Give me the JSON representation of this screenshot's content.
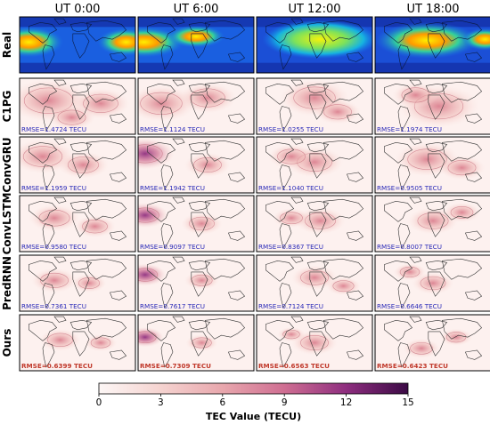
{
  "chart_data": {
    "type": "heatmap",
    "columns": [
      "UT 0:00",
      "UT 6:00",
      "UT 12:00",
      "UT 18:00"
    ],
    "rows": [
      "Real",
      "C1PG",
      "ConvGRU",
      "ConvLSTM",
      "PredRNN",
      "Ours"
    ],
    "rmse": {
      "C1PG": [
        "RMSE=1.4724 TECU",
        "RMSE=1.1124 TECU",
        "RMSE=1.0255 TECU",
        "RMSE=1.1974 TECU"
      ],
      "ConvGRU": [
        "RMSE=1.1959 TECU",
        "RMSE=1.1942 TECU",
        "RMSE=1.1040 TECU",
        "RMSE=0.9505 TECU"
      ],
      "ConvLSTM": [
        "RMSE=0.9580 TECU",
        "RMSE=0.9097 TECU",
        "RMSE=0.8367 TECU",
        "RMSE=0.8007 TECU"
      ],
      "PredRNN": [
        "RMSE=0.7361 TECU",
        "RMSE=0.7617 TECU",
        "RMSE=0.7124 TECU",
        "RMSE=0.6646 TECU"
      ],
      "Ours": [
        "RMSE=0.6399 TECU",
        "RMSE=0.7309 TECU",
        "RMSE=0.6563 TECU",
        "RMSE=0.6423 TECU"
      ]
    },
    "colorbar": {
      "label": "TEC Value (TECU)",
      "range": [
        0,
        15
      ],
      "ticks": [
        0,
        3,
        6,
        9,
        12,
        15
      ]
    },
    "colors": {
      "rmse_text": "#2a2ab8",
      "rmse_text_ours": "#c0392b",
      "error_low": "#fdf1ef",
      "error_high": "#3b0a45"
    }
  }
}
